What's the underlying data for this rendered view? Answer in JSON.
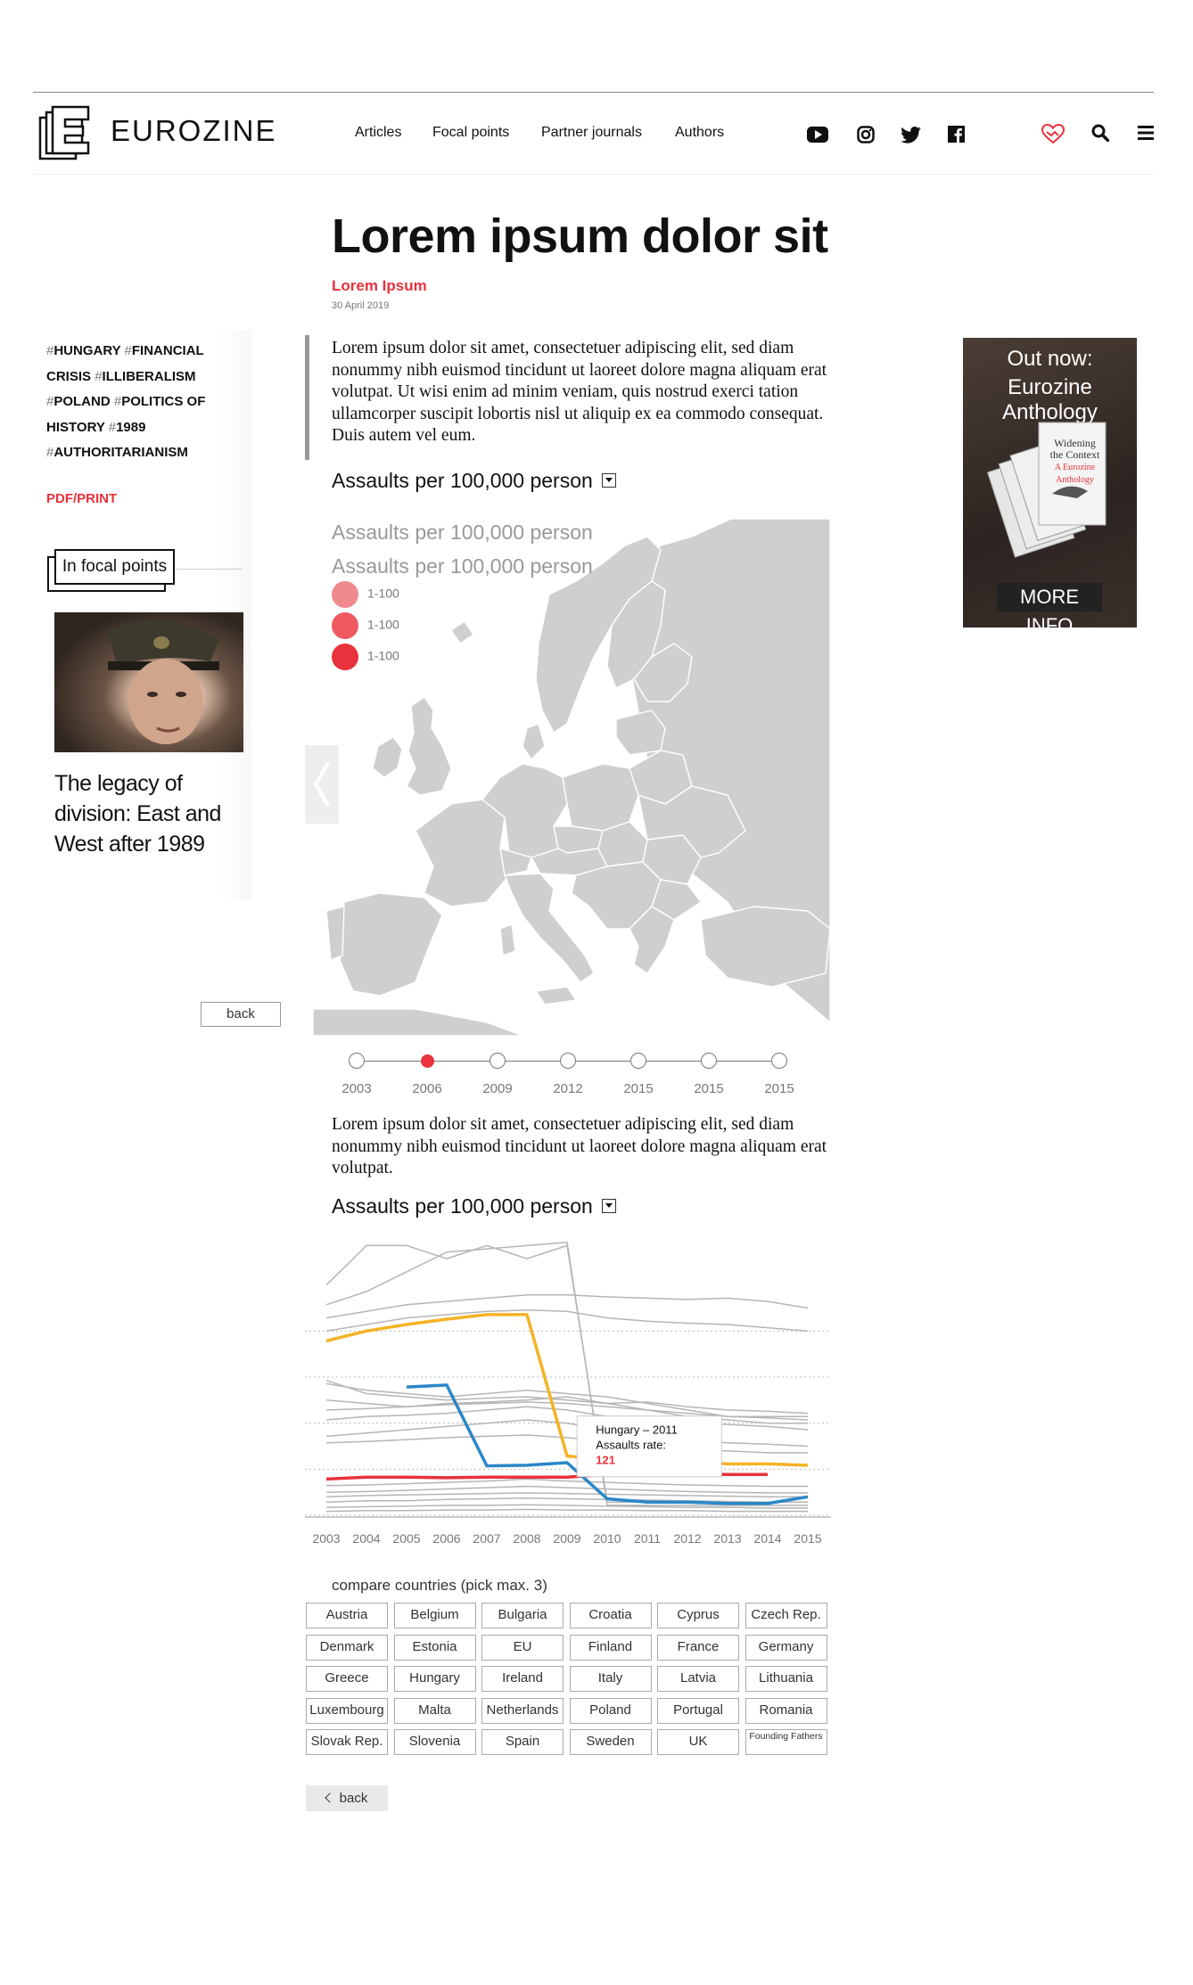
{
  "header": {
    "logo_text": "EUROZINE",
    "nav": [
      "Articles",
      "Focal points",
      "Partner journals",
      "Authors"
    ],
    "social_icons": [
      "youtube-icon",
      "instagram-icon",
      "twitter-icon",
      "facebook-icon"
    ],
    "utility_icons": [
      "support-heart-icon",
      "search-icon",
      "menu-icon"
    ]
  },
  "article": {
    "title": "Lorem ipsum dolor sit",
    "author": "Lorem Ipsum",
    "date": "30 April 2019",
    "intro": "Lorem ipsum dolor sit amet, consectetuer adipiscing elit, sed diam nonummy nibh euismod tincidunt ut laoreet dolore magna aliquam erat volutpat. Ut wisi enim ad minim veniam, quis nostrud exerci tation ullamcorper suscipit lobortis nisl ut aliquip ex ea commodo consequat. Duis autem vel eum.",
    "para2": "Lorem ipsum dolor sit amet, consectetuer adipiscing elit, sed diam nonummy nibh euismod tincidunt ut laoreet dolore magna aliquam erat volutpat."
  },
  "sidebar": {
    "tags": [
      "HUNGARY",
      "FINANCIAL CRISIS",
      "ILLIBERALISM",
      "POLAND",
      "POLITICS OF HISTORY",
      "1989",
      "AUTHORITARIANISM"
    ],
    "hash": "#",
    "pdf_label": "PDF/PRINT",
    "focal_heading": "In focal points",
    "focal_title": "The legacy of division: East and West after 1989",
    "back_label": "back"
  },
  "map": {
    "selector_title": "Assaults per 100,000 person",
    "title1": "Assaults per 100,000 person",
    "title2": "Assaults per 100,000 person",
    "legend": [
      {
        "label": "1-100",
        "color": "#f08a8f"
      },
      {
        "label": "1-100",
        "color": "#ee5a60"
      },
      {
        "label": "1-100",
        "color": "#e8323c"
      }
    ],
    "timeline": [
      "2003",
      "2006",
      "2009",
      "2012",
      "2015",
      "2015",
      "2015"
    ],
    "timeline_active": 1
  },
  "chart_section": {
    "selector_title": "Assaults per 100,000 person",
    "compare_label": "compare countries (pick max. 3)",
    "countries": [
      "Austria",
      "Belgium",
      "Bulgaria",
      "Croatia",
      "Cyprus",
      "Czech Rep.",
      "Denmark",
      "Estonia",
      "EU",
      "Finland",
      "France",
      "Germany",
      "Greece",
      "Hungary",
      "Ireland",
      "Italy",
      "Latvia",
      "Lithuania",
      "Luxembourg",
      "Malta",
      "Netherlands",
      "Poland",
      "Portugal",
      "Romania",
      "Slovak Rep.",
      "Slovenia",
      "Spain",
      "Sweden",
      "UK",
      "Founding Fathers"
    ],
    "back_label": "back"
  },
  "chart_data": {
    "type": "line",
    "x": [
      2003,
      2004,
      2005,
      2006,
      2007,
      2008,
      2009,
      2010,
      2011,
      2012,
      2013,
      2014,
      2015
    ],
    "xlim": [
      2003,
      2015
    ],
    "grid": true,
    "ylim": [
      0,
      420
    ],
    "highlight_series": [
      {
        "color": "#f4b324",
        "values": [
          265,
          280,
          290,
          298,
          305,
          305,
          90,
          85,
          84,
          82,
          78,
          78,
          76
        ]
      },
      {
        "color": "#e8323c",
        "values": [
          55,
          58,
          58,
          57,
          58,
          58,
          58,
          62,
          62,
          62,
          62,
          62,
          null
        ]
      },
      {
        "color": "#2a87c9",
        "values": [
          null,
          null,
          195,
          198,
          75,
          76,
          80,
          25,
          20,
          20,
          18,
          18,
          28
        ]
      }
    ],
    "background_series": [
      [
        350,
        410,
        410,
        390,
        410,
        390,
        410,
        20,
        20,
        20,
        20,
        20,
        20
      ],
      [
        320,
        340,
        370,
        400,
        405,
        410,
        415,
        15,
        15,
        15,
        15,
        15,
        15
      ],
      [
        300,
        310,
        320,
        325,
        330,
        335,
        335,
        332,
        330,
        328,
        330,
        325,
        315
      ],
      [
        280,
        290,
        300,
        305,
        310,
        312,
        310,
        300,
        295,
        292,
        290,
        285,
        280
      ],
      [
        205,
        185,
        180,
        175,
        178,
        180,
        175,
        170,
        172,
        165,
        160,
        158,
        155
      ],
      [
        200,
        190,
        185,
        180,
        185,
        190,
        185,
        180,
        170,
        160,
        150,
        150,
        150
      ],
      [
        175,
        170,
        165,
        170,
        172,
        175,
        180,
        170,
        160,
        150,
        145,
        140,
        140
      ],
      [
        160,
        162,
        165,
        168,
        170,
        172,
        170,
        165,
        160,
        155,
        150,
        148,
        145
      ],
      [
        145,
        150,
        152,
        155,
        160,
        165,
        160,
        150,
        145,
        140,
        138,
        135,
        130
      ],
      [
        120,
        125,
        130,
        135,
        140,
        145,
        140,
        130,
        120,
        115,
        110,
        108,
        105
      ],
      [
        110,
        112,
        115,
        118,
        120,
        122,
        118,
        112,
        105,
        100,
        98,
        95,
        95
      ],
      [
        45,
        46,
        48,
        50,
        52,
        55,
        52,
        50,
        48,
        46,
        45,
        44,
        44
      ],
      [
        35,
        36,
        38,
        40,
        42,
        44,
        42,
        40,
        38,
        36,
        35,
        34,
        34
      ],
      [
        28,
        30,
        31,
        32,
        33,
        34,
        33,
        32,
        31,
        30,
        29,
        28,
        28
      ],
      [
        20,
        22,
        22,
        24,
        25,
        26,
        25,
        24,
        23,
        22,
        21,
        20,
        20
      ],
      [
        12,
        13,
        14,
        15,
        15,
        16,
        15,
        14,
        13,
        12,
        12,
        11,
        11
      ],
      [
        6,
        7,
        7,
        8,
        8,
        9,
        8,
        8,
        7,
        7,
        6,
        6,
        6
      ]
    ],
    "tooltip": {
      "title": "Hungary – 2011",
      "label": "Assaults rate:",
      "value": "121"
    }
  },
  "ad": {
    "line1": "Out now:",
    "line2": "Eurozine Anthology",
    "book_title_1": "Widening",
    "book_title_2": "the Context",
    "book_sub": "A Eurozine Anthology",
    "cta": "MORE INFO"
  }
}
